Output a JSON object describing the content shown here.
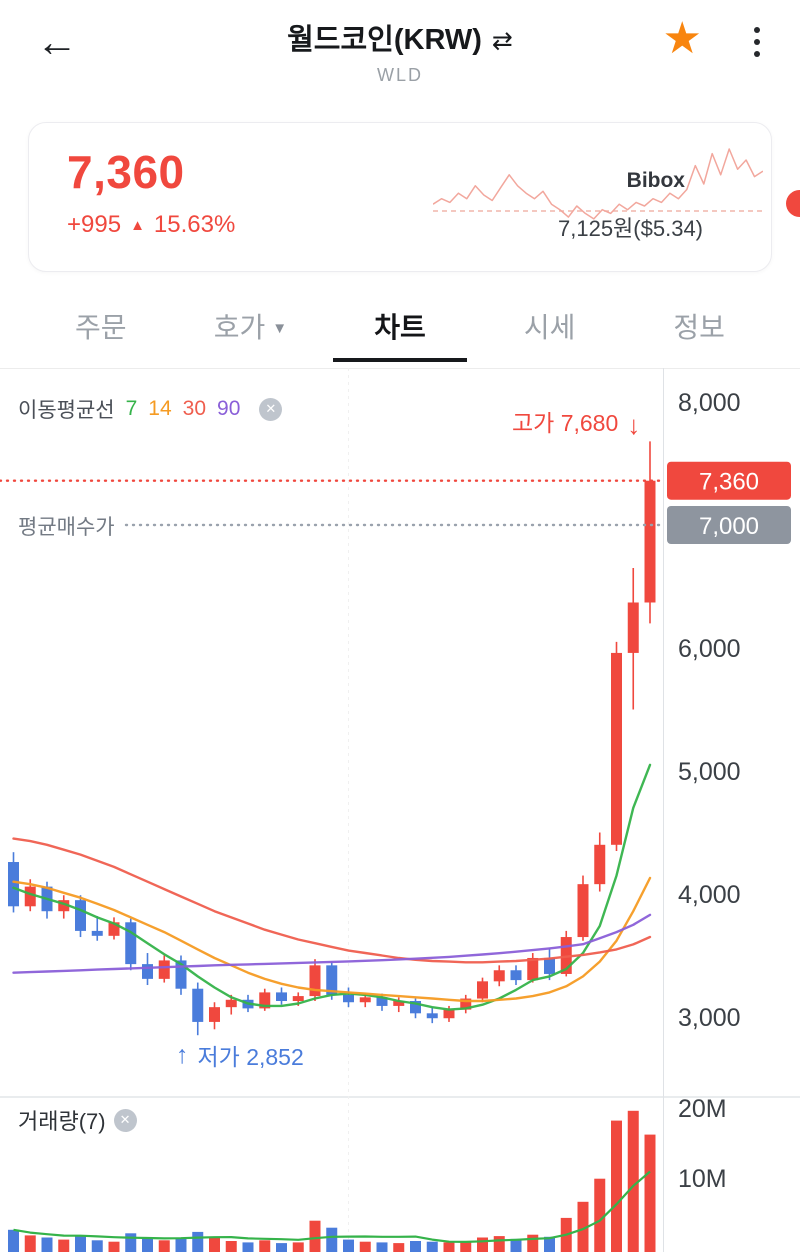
{
  "header": {
    "title": "월드코인(KRW)",
    "symbol": "WLD",
    "star_color": "#f8850f"
  },
  "price": {
    "current": "7,360",
    "change_amount": "+995",
    "change_percent": "15.63%",
    "exchange": "Bibox",
    "exchange_price": "7,125원($5.34)",
    "accent_red": "#f0483e",
    "accent_blue": "#4a7cdb"
  },
  "tabs": [
    {
      "label": "주문"
    },
    {
      "label": "호가"
    },
    {
      "label": "차트",
      "active": true
    },
    {
      "label": "시세"
    },
    {
      "label": "정보"
    }
  ],
  "chart": {
    "legend_title": "이동평균선",
    "high_label": "고가 7,680",
    "low_label": "저가 2,852",
    "avg_buy_label": "평균매수가",
    "volume_label": "거래량(7)"
  },
  "chart_data": {
    "type": "candlestick_with_volume",
    "title": "월드코인(KRW) daily candlestick chart",
    "unit": "KRW",
    "current_price": 7360,
    "current_price_label": "7,360",
    "avg_buy_price": 7000,
    "avg_buy_price_label": "7,000",
    "high": 7680,
    "low": 2852,
    "up_color": "#f0483e",
    "down_color": "#4a7cdb",
    "avg_badge_color": "#8e959f",
    "y_axis_ticks": [
      {
        "value": 8000,
        "label": "8,000"
      },
      {
        "value": 6000,
        "label": "6,000"
      },
      {
        "value": 5000,
        "label": "5,000"
      },
      {
        "value": 4000,
        "label": "4,000"
      },
      {
        "value": 3000,
        "label": "3,000"
      }
    ],
    "volume_axis_ticks": [
      {
        "value_millions": 20,
        "label": "20M"
      },
      {
        "value_millions": 10,
        "label": "10M"
      }
    ],
    "candles_format": [
      "open",
      "high",
      "low",
      "close",
      "volume_millions"
    ],
    "candles": [
      [
        4260,
        4340,
        3850,
        3900,
        2.6
      ],
      [
        3900,
        4120,
        3860,
        4060,
        1.8
      ],
      [
        4060,
        4100,
        3800,
        3860,
        1.5
      ],
      [
        3860,
        3990,
        3800,
        3950,
        1.2
      ],
      [
        3950,
        3990,
        3650,
        3700,
        1.7
      ],
      [
        3700,
        3820,
        3620,
        3660,
        1.1
      ],
      [
        3660,
        3810,
        3630,
        3770,
        0.9
      ],
      [
        3770,
        3800,
        3380,
        3430,
        2.1
      ],
      [
        3430,
        3520,
        3260,
        3310,
        1.5
      ],
      [
        3310,
        3500,
        3280,
        3460,
        1.1
      ],
      [
        3460,
        3500,
        3180,
        3230,
        1.4
      ],
      [
        3230,
        3280,
        2852,
        2960,
        2.3
      ],
      [
        2960,
        3120,
        2900,
        3080,
        1.5
      ],
      [
        3080,
        3180,
        3020,
        3140,
        1.0
      ],
      [
        3140,
        3180,
        3040,
        3070,
        0.8
      ],
      [
        3070,
        3230,
        3050,
        3200,
        1.1
      ],
      [
        3200,
        3240,
        3100,
        3130,
        0.7
      ],
      [
        3130,
        3200,
        3090,
        3170,
        0.8
      ],
      [
        3170,
        3470,
        3130,
        3420,
        3.9
      ],
      [
        3420,
        3450,
        3140,
        3180,
        2.9
      ],
      [
        3180,
        3240,
        3080,
        3120,
        1.2
      ],
      [
        3120,
        3190,
        3080,
        3160,
        0.9
      ],
      [
        3160,
        3190,
        3050,
        3090,
        0.8
      ],
      [
        3090,
        3160,
        3040,
        3130,
        0.7
      ],
      [
        3130,
        3150,
        2990,
        3030,
        1.0
      ],
      [
        3030,
        3080,
        2950,
        2990,
        0.9
      ],
      [
        2990,
        3090,
        2960,
        3060,
        0.8
      ],
      [
        3060,
        3180,
        3030,
        3150,
        1.0
      ],
      [
        3150,
        3320,
        3120,
        3290,
        1.5
      ],
      [
        3290,
        3420,
        3250,
        3380,
        1.7
      ],
      [
        3380,
        3420,
        3260,
        3300,
        1.3
      ],
      [
        3300,
        3520,
        3280,
        3480,
        1.9
      ],
      [
        3480,
        3560,
        3300,
        3350,
        1.6
      ],
      [
        3350,
        3700,
        3330,
        3650,
        4.3
      ],
      [
        3650,
        4150,
        3620,
        4080,
        6.6
      ],
      [
        4080,
        4500,
        4020,
        4400,
        9.9
      ],
      [
        4400,
        6050,
        4350,
        5960,
        18.2
      ],
      [
        5960,
        6650,
        5500,
        6370,
        19.6
      ],
      [
        6370,
        7680,
        6200,
        7360,
        16.2
      ]
    ],
    "ma_series": [
      {
        "period": 7,
        "color": "#35b34a",
        "values": [
          4050,
          4000,
          3960,
          3920,
          3870,
          3810,
          3760,
          3690,
          3600,
          3510,
          3430,
          3330,
          3240,
          3160,
          3110,
          3090,
          3090,
          3110,
          3150,
          3180,
          3190,
          3180,
          3160,
          3130,
          3110,
          3080,
          3060,
          3070,
          3100,
          3150,
          3220,
          3300,
          3330,
          3390,
          3520,
          3740,
          4150,
          4700,
          5050
        ]
      },
      {
        "period": 14,
        "color": "#f59b23",
        "values": [
          4100,
          4080,
          4050,
          4010,
          3970,
          3920,
          3870,
          3810,
          3750,
          3690,
          3620,
          3550,
          3480,
          3420,
          3360,
          3310,
          3270,
          3240,
          3220,
          3210,
          3200,
          3190,
          3180,
          3170,
          3160,
          3150,
          3140,
          3130,
          3130,
          3140,
          3150,
          3170,
          3200,
          3250,
          3330,
          3450,
          3620,
          3860,
          4130
        ]
      },
      {
        "period": 30,
        "color": "#ef5e4e",
        "values": [
          4450,
          4430,
          4400,
          4360,
          4320,
          4270,
          4220,
          4160,
          4100,
          4040,
          3980,
          3920,
          3860,
          3810,
          3760,
          3710,
          3670,
          3630,
          3600,
          3570,
          3540,
          3520,
          3500,
          3480,
          3465,
          3455,
          3450,
          3445,
          3445,
          3450,
          3455,
          3465,
          3475,
          3490,
          3505,
          3525,
          3550,
          3590,
          3650
        ]
      },
      {
        "period": 90,
        "color": "#8a5fd8",
        "values": [
          3360,
          3365,
          3370,
          3375,
          3380,
          3385,
          3390,
          3395,
          3400,
          3405,
          3410,
          3415,
          3420,
          3424,
          3428,
          3432,
          3436,
          3440,
          3444,
          3448,
          3452,
          3457,
          3462,
          3468,
          3474,
          3481,
          3489,
          3498,
          3508,
          3519,
          3531,
          3544,
          3558,
          3574,
          3592,
          3640,
          3690,
          3750,
          3830
        ]
      }
    ],
    "volume_ma_period": 7,
    "sparkline_color": "#f2a79d",
    "sparkline": [
      0.4,
      0.46,
      0.42,
      0.52,
      0.46,
      0.6,
      0.5,
      0.44,
      0.58,
      0.72,
      0.6,
      0.52,
      0.46,
      0.54,
      0.4,
      0.34,
      0.26,
      0.38,
      0.3,
      0.24,
      0.34,
      0.3,
      0.4,
      0.34,
      0.42,
      0.38,
      0.46,
      0.42,
      0.52,
      0.46,
      0.56,
      0.82,
      0.62,
      0.95,
      0.72,
      1.0,
      0.78,
      0.88,
      0.7,
      0.76
    ]
  }
}
